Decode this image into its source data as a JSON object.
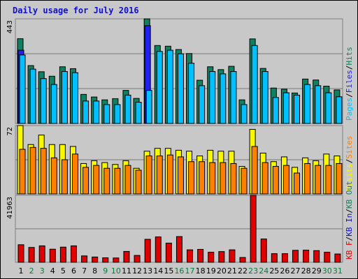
{
  "title": "Daily usage for July 2016",
  "chart_data": [
    {
      "type": "bar",
      "panel": "traffic",
      "categories": [
        "1",
        "2",
        "3",
        "4",
        "5",
        "6",
        "7",
        "8",
        "9",
        "10",
        "11",
        "12",
        "13",
        "14",
        "15",
        "16",
        "17",
        "18",
        "19",
        "20",
        "21",
        "22",
        "23",
        "24",
        "25",
        "26",
        "27",
        "28",
        "29",
        "30",
        "31"
      ],
      "weekend_days": [
        "2",
        "3",
        "9",
        "10",
        "16",
        "17",
        "23",
        "24",
        "30",
        "31"
      ],
      "ytick": "443",
      "ymax": 443,
      "legend": [
        "Pages",
        "/",
        "Files",
        "/",
        "Hits"
      ],
      "series": [
        {
          "name": "Hits",
          "color": "#108060",
          "values": [
            359,
            245,
            219,
            200,
            240,
            232,
            123,
            112,
            100,
            105,
            140,
            106,
            443,
            330,
            327,
            313,
            296,
            183,
            240,
            228,
            242,
            100,
            358,
            233,
            150,
            145,
            129,
            188,
            184,
            158,
            142
          ]
        },
        {
          "name": "Files",
          "color": "#2020f0",
          "values": [
            310,
            null,
            null,
            null,
            null,
            null,
            null,
            null,
            null,
            null,
            null,
            null,
            414,
            null,
            null,
            null,
            null,
            null,
            null,
            null,
            null,
            null,
            null,
            null,
            null,
            null,
            null,
            null,
            null,
            null,
            null
          ]
        },
        {
          "name": "Pages",
          "color": "#00c0ff",
          "values": [
            290,
            230,
            190,
            165,
            220,
            215,
            95,
            95,
            80,
            80,
            120,
            90,
            140,
            305,
            310,
            295,
            255,
            160,
            220,
            210,
            220,
            80,
            330,
            220,
            110,
            130,
            120,
            165,
            160,
            130,
            113
          ]
        }
      ]
    },
    {
      "type": "bar",
      "panel": "visits",
      "categories": [
        "1",
        "2",
        "3",
        "4",
        "5",
        "6",
        "7",
        "8",
        "9",
        "10",
        "11",
        "12",
        "13",
        "14",
        "15",
        "16",
        "17",
        "18",
        "19",
        "20",
        "21",
        "22",
        "23",
        "24",
        "25",
        "26",
        "27",
        "28",
        "29",
        "30",
        "31"
      ],
      "ytick": "72",
      "ymax": 72,
      "legend": [
        "Visits",
        "/",
        "Sites"
      ],
      "series": [
        {
          "name": "Visits",
          "color": "#f8f800",
          "values": [
            72,
            52,
            62,
            52,
            52,
            50,
            32,
            35,
            33,
            31,
            35,
            27,
            45,
            48,
            48,
            46,
            45,
            40,
            46,
            45,
            45,
            29,
            68,
            43,
            34,
            39,
            28,
            38,
            35,
            42,
            40
          ]
        },
        {
          "name": "Sites",
          "color": "#ff8000",
          "values": [
            47,
            49,
            48,
            38,
            36,
            42,
            28,
            30,
            27,
            27,
            30,
            25,
            40,
            40,
            41,
            39,
            34,
            34,
            33,
            33,
            32,
            27,
            50,
            33,
            29,
            30,
            22,
            32,
            30,
            30,
            32
          ]
        }
      ]
    },
    {
      "type": "bar",
      "panel": "kbytes",
      "categories": [
        "1",
        "2",
        "3",
        "4",
        "5",
        "6",
        "7",
        "8",
        "9",
        "10",
        "11",
        "12",
        "13",
        "14",
        "15",
        "16",
        "17",
        "18",
        "19",
        "20",
        "21",
        "22",
        "23",
        "24",
        "25",
        "26",
        "27",
        "28",
        "29",
        "30",
        "31"
      ],
      "ytick": "41963",
      "ymax": 41963,
      "legend": [
        "KB F",
        "/",
        "KB In",
        "/",
        "KB Out"
      ],
      "series": [
        {
          "name": "KB F",
          "color": "#e00000",
          "values": [
            11000,
            9300,
            10300,
            8200,
            9500,
            10300,
            4000,
            3300,
            2800,
            2700,
            6800,
            4300,
            14400,
            15900,
            12000,
            16100,
            7800,
            8100,
            6300,
            6700,
            7800,
            3000,
            41963,
            14600,
            5400,
            5400,
            7500,
            7600,
            7300,
            6300,
            5200
          ]
        }
      ]
    }
  ],
  "colors": {
    "background": "#c8c8c8",
    "plot_border": "#808080",
    "gridline": "#777777",
    "title": "#1010c8",
    "weekday_label": "#000000",
    "weekend_label": "#00803c",
    "legend_slash": "#000000",
    "legend_kb_in": "#1010c8",
    "legend_kb_out": "#108060"
  }
}
